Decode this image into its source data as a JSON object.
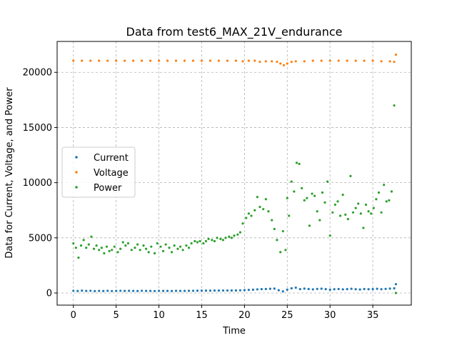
{
  "chart_data": {
    "type": "scatter",
    "title": "Data from test6_MAX_21V_endurance",
    "xlabel": "Time",
    "ylabel": "Data for Current, Voltage, and Power",
    "xlim": [
      -1.9,
      39.5
    ],
    "ylim": [
      -1100,
      22800
    ],
    "xticks": [
      0,
      5,
      10,
      15,
      20,
      25,
      30,
      35
    ],
    "yticks": [
      0,
      5000,
      10000,
      15000,
      20000
    ],
    "grid": true,
    "legend_position": "center-left",
    "series": [
      {
        "name": "Current",
        "color": "#1f77b4",
        "points": [
          [
            0.0,
            200
          ],
          [
            0.5,
            180
          ],
          [
            1.0,
            210
          ],
          [
            1.5,
            190
          ],
          [
            2.0,
            200
          ],
          [
            2.5,
            170
          ],
          [
            3.0,
            190
          ],
          [
            3.5,
            180
          ],
          [
            4.0,
            200
          ],
          [
            4.5,
            175
          ],
          [
            5.0,
            190
          ],
          [
            5.5,
            200
          ],
          [
            6.0,
            185
          ],
          [
            6.5,
            195
          ],
          [
            7.0,
            190
          ],
          [
            7.5,
            180
          ],
          [
            8.0,
            200
          ],
          [
            8.5,
            185
          ],
          [
            9.0,
            190
          ],
          [
            9.5,
            175
          ],
          [
            10.0,
            195
          ],
          [
            10.5,
            185
          ],
          [
            11.0,
            190
          ],
          [
            11.5,
            180
          ],
          [
            12.0,
            195
          ],
          [
            12.5,
            185
          ],
          [
            13.0,
            190
          ],
          [
            13.5,
            195
          ],
          [
            14.0,
            200
          ],
          [
            14.5,
            205
          ],
          [
            15.0,
            210
          ],
          [
            15.5,
            215
          ],
          [
            16.0,
            215
          ],
          [
            16.5,
            220
          ],
          [
            17.0,
            220
          ],
          [
            17.5,
            225
          ],
          [
            18.0,
            225
          ],
          [
            18.5,
            230
          ],
          [
            19.0,
            230
          ],
          [
            19.5,
            240
          ],
          [
            20.0,
            260
          ],
          [
            20.5,
            280
          ],
          [
            21.0,
            300
          ],
          [
            21.5,
            330
          ],
          [
            22.0,
            350
          ],
          [
            22.5,
            360
          ],
          [
            23.0,
            380
          ],
          [
            23.5,
            400
          ],
          [
            24.0,
            250
          ],
          [
            24.5,
            150
          ],
          [
            25.0,
            300
          ],
          [
            25.5,
            420
          ],
          [
            26.0,
            480
          ],
          [
            26.5,
            350
          ],
          [
            27.0,
            400
          ],
          [
            27.5,
            360
          ],
          [
            28.0,
            330
          ],
          [
            28.5,
            370
          ],
          [
            29.0,
            390
          ],
          [
            29.5,
            350
          ],
          [
            30.0,
            300
          ],
          [
            30.5,
            340
          ],
          [
            31.0,
            360
          ],
          [
            31.5,
            330
          ],
          [
            32.0,
            350
          ],
          [
            32.5,
            380
          ],
          [
            33.0,
            340
          ],
          [
            33.5,
            320
          ],
          [
            34.0,
            360
          ],
          [
            34.5,
            340
          ],
          [
            35.0,
            350
          ],
          [
            35.5,
            380
          ],
          [
            36.0,
            340
          ],
          [
            36.5,
            370
          ],
          [
            37.0,
            400
          ],
          [
            37.5,
            420
          ],
          [
            37.7,
            800
          ]
        ]
      },
      {
        "name": "Voltage",
        "color": "#ff7f0e",
        "points": [
          [
            0.0,
            21050
          ],
          [
            1.0,
            21050
          ],
          [
            2.0,
            21050
          ],
          [
            3.0,
            21050
          ],
          [
            4.0,
            21050
          ],
          [
            5.0,
            21050
          ],
          [
            6.0,
            21050
          ],
          [
            7.0,
            21050
          ],
          [
            8.0,
            21050
          ],
          [
            9.0,
            21050
          ],
          [
            10.0,
            21050
          ],
          [
            11.0,
            21050
          ],
          [
            12.0,
            21050
          ],
          [
            13.0,
            21050
          ],
          [
            14.0,
            21050
          ],
          [
            15.0,
            21050
          ],
          [
            16.0,
            21050
          ],
          [
            17.0,
            21050
          ],
          [
            18.0,
            21050
          ],
          [
            19.0,
            21050
          ],
          [
            19.8,
            21000
          ],
          [
            20.5,
            21050
          ],
          [
            21.2,
            21050
          ],
          [
            21.8,
            20950
          ],
          [
            22.5,
            21000
          ],
          [
            23.2,
            21000
          ],
          [
            23.8,
            20950
          ],
          [
            24.2,
            20800
          ],
          [
            24.6,
            20650
          ],
          [
            25.0,
            20800
          ],
          [
            25.5,
            20950
          ],
          [
            26.0,
            21000
          ],
          [
            27.0,
            21000
          ],
          [
            28.0,
            21050
          ],
          [
            29.0,
            21050
          ],
          [
            30.0,
            21050
          ],
          [
            31.0,
            21050
          ],
          [
            32.0,
            21050
          ],
          [
            33.0,
            21050
          ],
          [
            34.0,
            21050
          ],
          [
            35.0,
            21050
          ],
          [
            36.0,
            21000
          ],
          [
            37.0,
            21000
          ],
          [
            37.5,
            20950
          ],
          [
            37.7,
            21600
          ]
        ]
      },
      {
        "name": "Power",
        "color": "#2ca02c",
        "points": [
          [
            0.0,
            4500
          ],
          [
            0.3,
            4100
          ],
          [
            0.6,
            3200
          ],
          [
            0.9,
            4300
          ],
          [
            1.2,
            4800
          ],
          [
            1.5,
            4100
          ],
          [
            1.8,
            4400
          ],
          [
            2.1,
            5100
          ],
          [
            2.4,
            4000
          ],
          [
            2.7,
            4300
          ],
          [
            3.0,
            3900
          ],
          [
            3.3,
            4100
          ],
          [
            3.6,
            3600
          ],
          [
            3.9,
            4200
          ],
          [
            4.2,
            3800
          ],
          [
            4.5,
            3900
          ],
          [
            4.8,
            4200
          ],
          [
            5.2,
            3700
          ],
          [
            5.5,
            4000
          ],
          [
            5.8,
            4600
          ],
          [
            6.1,
            4300
          ],
          [
            6.4,
            4500
          ],
          [
            6.8,
            3900
          ],
          [
            7.2,
            4100
          ],
          [
            7.5,
            4400
          ],
          [
            7.8,
            3900
          ],
          [
            8.2,
            4300
          ],
          [
            8.5,
            4000
          ],
          [
            8.8,
            3700
          ],
          [
            9.1,
            4200
          ],
          [
            9.5,
            3600
          ],
          [
            9.8,
            4500
          ],
          [
            10.2,
            4200
          ],
          [
            10.5,
            3800
          ],
          [
            10.8,
            4400
          ],
          [
            11.2,
            4100
          ],
          [
            11.5,
            3700
          ],
          [
            11.8,
            4300
          ],
          [
            12.2,
            4000
          ],
          [
            12.5,
            4200
          ],
          [
            12.8,
            3900
          ],
          [
            13.2,
            4300
          ],
          [
            13.5,
            4100
          ],
          [
            13.8,
            4500
          ],
          [
            14.2,
            4700
          ],
          [
            14.5,
            4600
          ],
          [
            14.8,
            4700
          ],
          [
            15.2,
            4500
          ],
          [
            15.5,
            4700
          ],
          [
            15.8,
            4900
          ],
          [
            16.2,
            4800
          ],
          [
            16.5,
            4700
          ],
          [
            16.8,
            5000
          ],
          [
            17.2,
            4900
          ],
          [
            17.5,
            4800
          ],
          [
            17.8,
            5000
          ],
          [
            18.2,
            5100
          ],
          [
            18.5,
            5000
          ],
          [
            18.8,
            5200
          ],
          [
            19.2,
            5300
          ],
          [
            19.5,
            5500
          ],
          [
            19.8,
            6300
          ],
          [
            20.2,
            6800
          ],
          [
            20.5,
            7200
          ],
          [
            20.8,
            7000
          ],
          [
            21.2,
            7500
          ],
          [
            21.5,
            8700
          ],
          [
            21.8,
            7800
          ],
          [
            22.2,
            7600
          ],
          [
            22.5,
            8500
          ],
          [
            22.8,
            7400
          ],
          [
            23.2,
            6600
          ],
          [
            23.5,
            5800
          ],
          [
            23.8,
            4800
          ],
          [
            24.2,
            3700
          ],
          [
            24.5,
            5600
          ],
          [
            24.8,
            3900
          ],
          [
            25.0,
            8600
          ],
          [
            25.2,
            7000
          ],
          [
            25.5,
            10100
          ],
          [
            25.8,
            9200
          ],
          [
            26.1,
            11800
          ],
          [
            26.4,
            11700
          ],
          [
            26.7,
            9500
          ],
          [
            27.0,
            8400
          ],
          [
            27.3,
            8600
          ],
          [
            27.6,
            6100
          ],
          [
            27.9,
            9000
          ],
          [
            28.2,
            8800
          ],
          [
            28.5,
            7400
          ],
          [
            28.8,
            6600
          ],
          [
            29.1,
            9100
          ],
          [
            29.4,
            8200
          ],
          [
            29.7,
            10100
          ],
          [
            30.0,
            5200
          ],
          [
            30.3,
            7300
          ],
          [
            30.6,
            8000
          ],
          [
            30.9,
            8300
          ],
          [
            31.2,
            7000
          ],
          [
            31.5,
            8900
          ],
          [
            31.8,
            7100
          ],
          [
            32.1,
            6700
          ],
          [
            32.4,
            10600
          ],
          [
            32.7,
            7300
          ],
          [
            33.0,
            7700
          ],
          [
            33.3,
            8100
          ],
          [
            33.6,
            7200
          ],
          [
            33.9,
            5900
          ],
          [
            34.2,
            8000
          ],
          [
            34.5,
            7400
          ],
          [
            34.8,
            7200
          ],
          [
            35.1,
            7700
          ],
          [
            35.4,
            8500
          ],
          [
            35.7,
            9100
          ],
          [
            36.0,
            7300
          ],
          [
            36.3,
            9800
          ],
          [
            36.6,
            8300
          ],
          [
            36.9,
            8400
          ],
          [
            37.2,
            9200
          ],
          [
            37.5,
            17000
          ],
          [
            37.7,
            0
          ]
        ]
      }
    ]
  }
}
